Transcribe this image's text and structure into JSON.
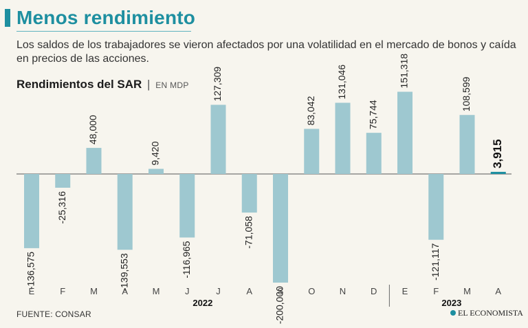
{
  "header": {
    "title": "Menos rendimiento",
    "subtitle": "Los saldos de los trabajadores se vieron afectados por una volatilidad en el mercado de bonos y caída en precios de las acciones."
  },
  "chart_heading": {
    "title": "Rendimientos del SAR",
    "separator": "|",
    "unit": "EN MDP"
  },
  "colors": {
    "accent": "#1e8fa0",
    "bar": "#9ec8d0",
    "highlight_bar": "#1e8fa0",
    "background": "#f7f5ee"
  },
  "chart_data": {
    "type": "bar",
    "title": "Rendimientos del SAR",
    "ylabel": "EN MDP",
    "xlabel": "",
    "categories": [
      "E",
      "F",
      "M",
      "A",
      "M",
      "J",
      "J",
      "A",
      "S",
      "O",
      "N",
      "D",
      "E",
      "F",
      "M",
      "A"
    ],
    "values": [
      -136575,
      -25316,
      48000,
      -139553,
      9420,
      -116965,
      127309,
      -71058,
      -200000,
      83042,
      131046,
      75744,
      151318,
      -121117,
      108599,
      3915
    ],
    "value_labels": [
      "-136,575",
      "-25,316",
      "48,000",
      "-139,553",
      "9,420",
      "-116,965",
      "127,309",
      "-71,058",
      "-200,000",
      "83,042",
      "131,046",
      "75,744",
      "151,318",
      "-121,117",
      "108,599",
      "3,915"
    ],
    "highlight_index": 15,
    "groups": [
      {
        "label": "2022",
        "start": 0,
        "end": 11
      },
      {
        "label": "2023",
        "start": 12,
        "end": 15
      }
    ],
    "ylim": [
      -200000,
      151318
    ],
    "grid": false
  },
  "footer": {
    "source": "FUENTE: CONSAR",
    "logo_text": "EL ECONOMISTA"
  }
}
